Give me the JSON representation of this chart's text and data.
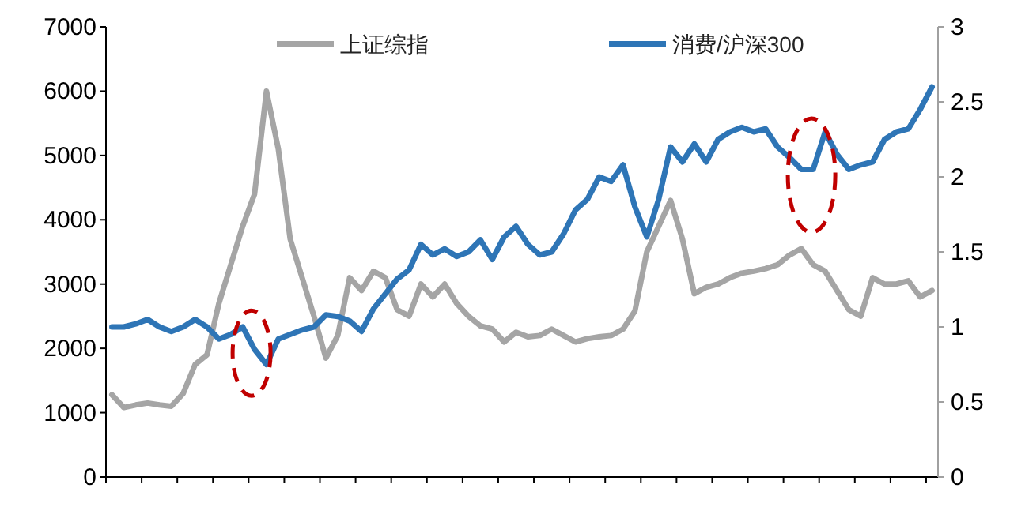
{
  "chart_data": {
    "type": "line",
    "categories": [
      null,
      null,
      null,
      null,
      null,
      null,
      null,
      null,
      null,
      null,
      null,
      null,
      null,
      null,
      null,
      null,
      null,
      null,
      null,
      null,
      null,
      null,
      null,
      null,
      null,
      null,
      null,
      null,
      null,
      null,
      null,
      null,
      null,
      null,
      null,
      null,
      null,
      null,
      null,
      null,
      null,
      null,
      null,
      null,
      null,
      null,
      null,
      null,
      null,
      null,
      null,
      null,
      null,
      null,
      null,
      null,
      null,
      null,
      null,
      null,
      null,
      null,
      null,
      null,
      null,
      null,
      null,
      null,
      null,
      null
    ],
    "series": [
      {
        "name": "上证综指",
        "color": "#a5a5a5",
        "values": [
          1280,
          1080,
          1120,
          1150,
          1120,
          1100,
          1300,
          1750,
          1900,
          2700,
          3300,
          3900,
          4400,
          6000,
          5100,
          3700,
          3100,
          2500,
          1850,
          2200,
          3100,
          2900,
          3200,
          3100,
          2600,
          2500,
          3000,
          2800,
          3000,
          2700,
          2500,
          2350,
          2300,
          2100,
          2250,
          2180,
          2200,
          2300,
          2200,
          2100,
          2150,
          2180,
          2200,
          2300,
          2580,
          3500,
          3900,
          4300,
          3700,
          2850,
          2950,
          3000,
          3100,
          3170,
          3200,
          3240,
          3300,
          3450,
          3550,
          3300,
          3200,
          2900,
          2600,
          2500,
          3100,
          3000,
          3000,
          3050,
          2800,
          2900
        ]
      },
      {
        "name": "消费/沪深300",
        "color": "#2e75b6",
        "axis": "y2",
        "values": [
          1.0,
          1.0,
          1.02,
          1.05,
          1.0,
          0.97,
          1.0,
          1.05,
          1.0,
          0.92,
          0.95,
          1.0,
          0.85,
          0.75,
          0.92,
          0.95,
          0.98,
          1.0,
          1.08,
          1.07,
          1.04,
          0.97,
          1.12,
          1.22,
          1.32,
          1.38,
          1.55,
          1.48,
          1.52,
          1.47,
          1.5,
          1.58,
          1.45,
          1.6,
          1.67,
          1.55,
          1.48,
          1.5,
          1.62,
          1.78,
          1.85,
          2.0,
          1.97,
          2.08,
          1.8,
          1.6,
          1.85,
          2.2,
          2.1,
          2.22,
          2.1,
          2.25,
          2.3,
          2.33,
          2.3,
          2.32,
          2.2,
          2.13,
          2.05,
          2.05,
          2.3,
          2.15,
          2.05,
          2.08,
          2.1,
          2.25,
          2.3,
          2.32,
          2.45,
          2.6
        ]
      }
    ],
    "ylim": [
      0,
      7000
    ],
    "yticks": [
      0,
      1000,
      2000,
      3000,
      4000,
      5000,
      6000,
      7000
    ],
    "y2lim": [
      0,
      3
    ],
    "y2ticks": [
      0,
      0.5,
      1,
      1.5,
      2,
      2.5,
      3
    ],
    "legend": "top",
    "grid": false
  }
}
